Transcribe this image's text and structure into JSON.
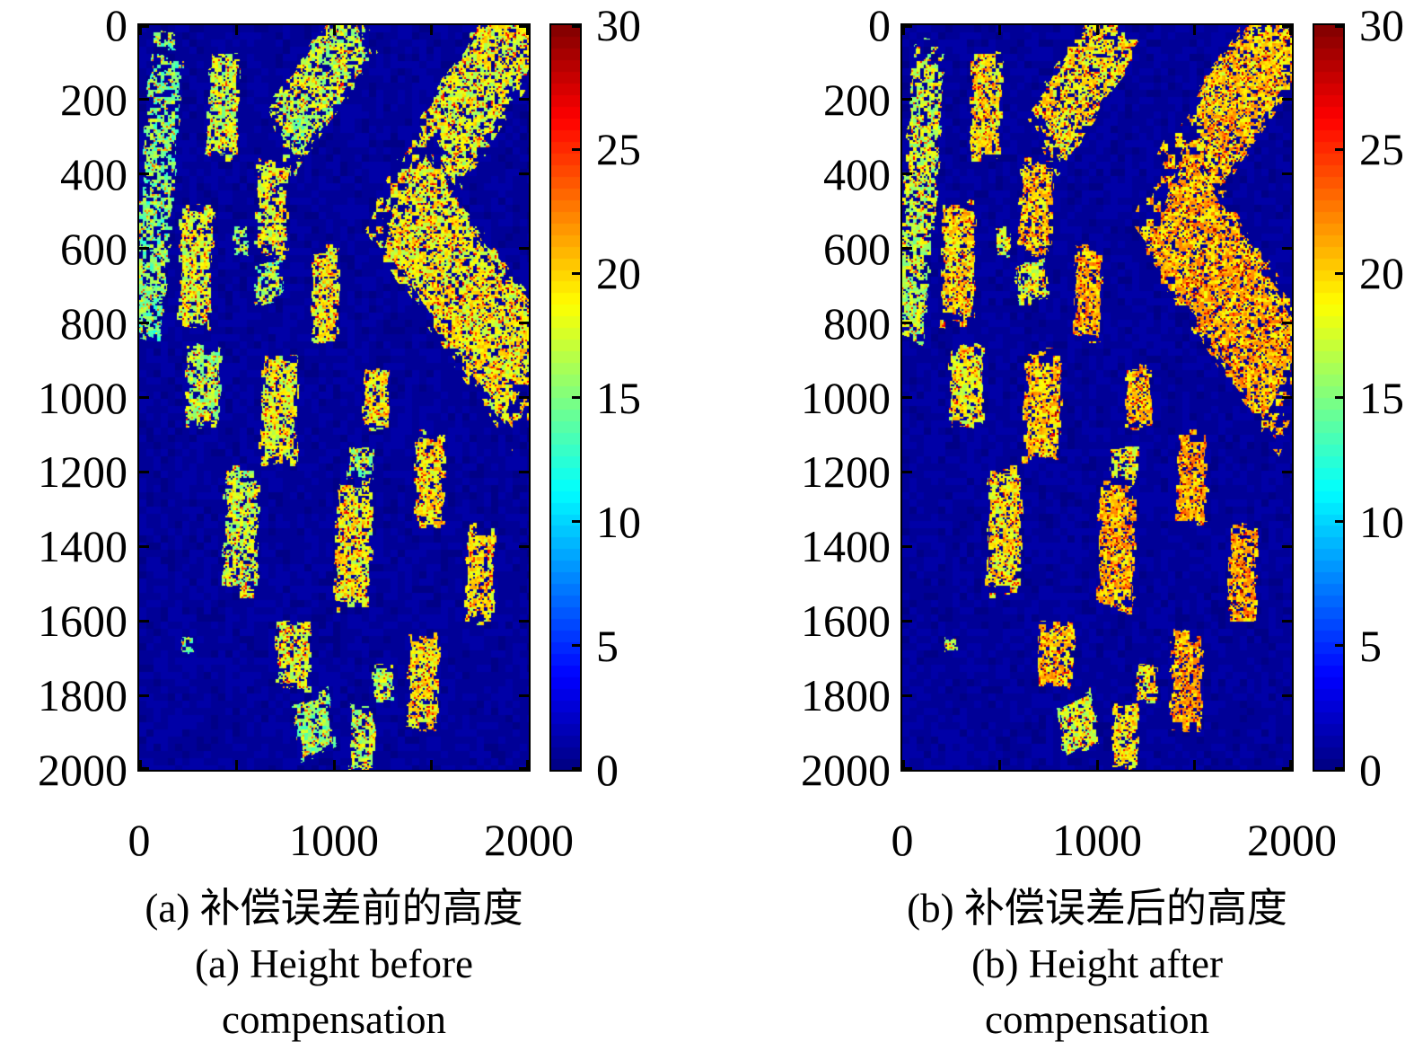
{
  "chart_data": {
    "type": "heatmap",
    "description": "Two SAR-derived height maps (jet colormap) shown before and after error compensation",
    "panels": [
      {
        "id": "a",
        "caption_lines": [
          "(a) 补偿误差前的高度",
          "(a) Height before",
          "compensation"
        ],
        "value_offset": 0,
        "hole_mult": 1.0,
        "seed": 3
      },
      {
        "id": "b",
        "caption_lines": [
          "(b) 补偿误差后的高度",
          "(b) Height after",
          "compensation"
        ],
        "value_offset": 2,
        "hole_mult": 0.7,
        "seed": 11
      }
    ],
    "x_axis": {
      "range": [
        0,
        2000
      ],
      "ticks": [
        0,
        500,
        1000,
        1500,
        2000
      ],
      "labeled": [
        0,
        1000,
        2000
      ]
    },
    "y_axis": {
      "range": [
        0,
        2000
      ],
      "ticks": [
        0,
        200,
        400,
        600,
        800,
        1000,
        1200,
        1400,
        1600,
        1800,
        2000
      ],
      "labeled": [
        0,
        200,
        400,
        600,
        800,
        1000,
        1200,
        1400,
        1600,
        1800,
        2000
      ]
    },
    "colorbar": {
      "range": [
        0,
        30
      ],
      "ticks": [
        0,
        5,
        10,
        15,
        20,
        25,
        30
      ],
      "colormap": "jet",
      "levels": 64
    },
    "colors": {
      "background_low": "#00008c",
      "axis": "#000000",
      "page": "#ffffff"
    },
    "background_value": 0.8,
    "patch_format": [
      "cx",
      "cy",
      "w",
      "h",
      "rot_deg",
      "value",
      "hole_fraction"
    ],
    "patches": [
      [
        95,
        420,
        180,
        800,
        8,
        15,
        0.3
      ],
      [
        60,
        770,
        130,
        160,
        10,
        14.5,
        0.35
      ],
      [
        430,
        220,
        165,
        300,
        3,
        17,
        0.1
      ],
      [
        930,
        150,
        560,
        240,
        -38,
        17,
        0.22
      ],
      [
        1800,
        130,
        760,
        300,
        -40,
        18,
        0.15
      ],
      [
        1615,
        180,
        150,
        120,
        -30,
        17.5,
        0.3
      ],
      [
        820,
        285,
        85,
        95,
        0,
        15.5,
        0.35
      ],
      [
        685,
        490,
        175,
        265,
        2,
        18,
        0.1
      ],
      [
        290,
        640,
        185,
        345,
        3,
        17.5,
        0.12
      ],
      [
        520,
        580,
        80,
        90,
        0,
        15.5,
        0.25
      ],
      [
        665,
        690,
        170,
        115,
        -10,
        15.5,
        0.25
      ],
      [
        955,
        725,
        150,
        265,
        2,
        18.5,
        0.1
      ],
      [
        1660,
        705,
        960,
        380,
        38,
        18.5,
        0.1
      ],
      [
        330,
        970,
        190,
        225,
        2,
        16.5,
        0.12
      ],
      [
        720,
        1030,
        200,
        325,
        2,
        18,
        0.1
      ],
      [
        1215,
        1000,
        145,
        175,
        0,
        18.5,
        0.1
      ],
      [
        1490,
        1220,
        165,
        265,
        2,
        19,
        0.1
      ],
      [
        1140,
        1175,
        145,
        95,
        0,
        16,
        0.25
      ],
      [
        525,
        1360,
        190,
        350,
        2,
        17,
        0.1
      ],
      [
        1100,
        1400,
        200,
        355,
        2,
        18.5,
        0.1
      ],
      [
        1750,
        1475,
        160,
        265,
        2,
        19,
        0.1
      ],
      [
        790,
        1695,
        190,
        190,
        2,
        18,
        0.1
      ],
      [
        250,
        1665,
        70,
        45,
        0,
        15,
        0.4
      ],
      [
        1460,
        1760,
        175,
        270,
        2,
        19,
        0.1
      ],
      [
        1255,
        1770,
        115,
        110,
        0,
        16.5,
        0.25
      ],
      [
        900,
        1880,
        195,
        165,
        -15,
        15.5,
        0.12
      ],
      [
        1145,
        1915,
        140,
        180,
        0,
        17,
        0.18
      ]
    ]
  }
}
